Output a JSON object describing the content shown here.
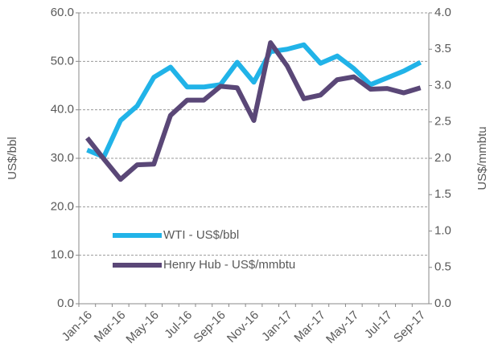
{
  "chart_data": {
    "type": "line",
    "categories": [
      "Jan-16",
      null,
      "Mar-16",
      null,
      "May-16",
      null,
      "Jul-16",
      null,
      "Sep-16",
      null,
      "Nov-16",
      null,
      "Jan-17",
      null,
      "Mar-17",
      null,
      "May-17",
      null,
      "Jul-17",
      null,
      "Sep-17"
    ],
    "series": [
      {
        "name": "WTI - US$/bbl",
        "color": "#21b3e8",
        "values": [
          31.7,
          30.3,
          37.8,
          40.8,
          46.7,
          48.8,
          44.7,
          44.7,
          45.2,
          49.8,
          45.7,
          52.0,
          52.5,
          53.4,
          49.6,
          51.1,
          48.5,
          45.2,
          46.6,
          48.0,
          49.8
        ]
      },
      {
        "name": "Henry Hub - US$/mmbtu",
        "color": "#5a4777",
        "axis": "y2",
        "values": [
          2.28,
          1.99,
          1.71,
          1.91,
          1.92,
          2.59,
          2.8,
          2.8,
          2.99,
          2.97,
          2.52,
          3.59,
          3.27,
          2.82,
          2.87,
          3.08,
          3.12,
          2.95,
          2.96,
          2.9,
          2.97
        ]
      }
    ],
    "ylabel": "US$/bbl",
    "y2label": "US$/mmbtu",
    "ylim": [
      0,
      60
    ],
    "yticks": [
      {
        "value": 0,
        "label": "0.0"
      },
      {
        "value": 10,
        "label": "10.0"
      },
      {
        "value": 20,
        "label": "20.0"
      },
      {
        "value": 30,
        "label": "30.0"
      },
      {
        "value": 40,
        "label": "40.0"
      },
      {
        "value": 50,
        "label": "50.0"
      },
      {
        "value": 60,
        "label": "60.0"
      }
    ],
    "y2lim": [
      0,
      4
    ],
    "y2ticks": [
      {
        "value": 0,
        "label": "0.0"
      },
      0.5,
      {
        "value": 1,
        "label": "1.0"
      },
      1.5,
      {
        "value": 2,
        "label": "2.0"
      },
      2.5,
      {
        "value": 3,
        "label": "3.0"
      },
      3.5,
      {
        "value": 4,
        "label": "4.0"
      }
    ],
    "grid": true,
    "legend": "lower left"
  }
}
